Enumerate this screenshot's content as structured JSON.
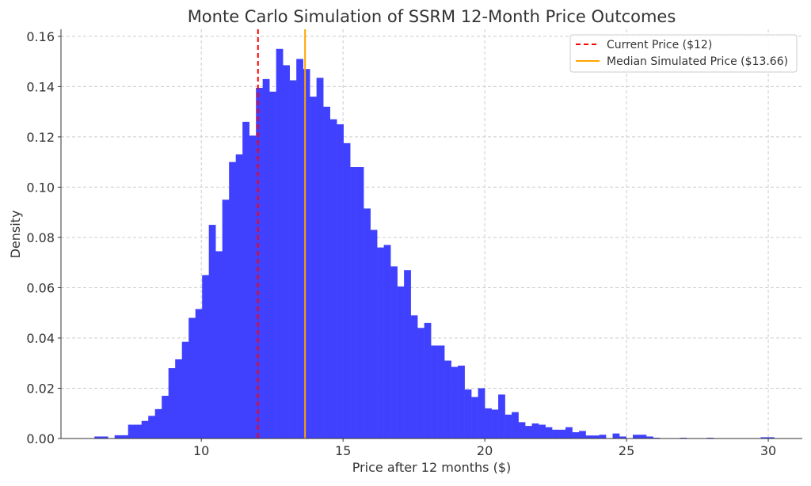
{
  "chart_data": {
    "type": "bar",
    "subtype": "histogram",
    "title": "Monte Carlo Simulation of SSRM 12-Month Price Outcomes",
    "xlabel": "Price after 12 months ($)",
    "ylabel": "Density",
    "xlim": [
      5.05,
      31.2
    ],
    "ylim": [
      0,
      0.1628
    ],
    "xticks": [
      10,
      15,
      20,
      25,
      30
    ],
    "xtick_labels": [
      "10",
      "15",
      "20",
      "25",
      "30"
    ],
    "yticks": [
      0,
      0.02,
      0.04,
      0.06,
      0.08,
      0.1,
      0.12,
      0.14,
      0.16
    ],
    "ytick_labels": [
      "0.00",
      "0.02",
      "0.04",
      "0.06",
      "0.08",
      "0.10",
      "0.12",
      "0.14",
      "0.16"
    ],
    "grid": true,
    "bar_color": "#4040ff",
    "bin_start": 6.23,
    "bin_width": 0.2374,
    "densities": [
      0.0008,
      0.0008,
      0,
      0.0013,
      0.0013,
      0.0055,
      0.0055,
      0.007,
      0.009,
      0.0117,
      0.017,
      0.028,
      0.0315,
      0.0385,
      0.048,
      0.0515,
      0.065,
      0.085,
      0.0745,
      0.095,
      0.11,
      0.113,
      0.126,
      0.1205,
      0.1395,
      0.143,
      0.138,
      0.155,
      0.1485,
      0.1425,
      0.151,
      0.147,
      0.136,
      0.1435,
      0.132,
      0.127,
      0.125,
      0.1175,
      0.108,
      0.108,
      0.0915,
      0.083,
      0.076,
      0.077,
      0.0685,
      0.0605,
      0.067,
      0.049,
      0.044,
      0.046,
      0.037,
      0.037,
      0.031,
      0.0285,
      0.029,
      0.0195,
      0.0165,
      0.02,
      0.012,
      0.0115,
      0.0175,
      0.0095,
      0.0105,
      0.0065,
      0.005,
      0.006,
      0.0055,
      0.0045,
      0.0035,
      0.0035,
      0.0045,
      0.0025,
      0.003,
      0.0012,
      0.0012,
      0.0015,
      0,
      0.002,
      0.0008,
      0,
      0.0015,
      0.0015,
      0.0008,
      0.0003,
      0,
      0,
      0,
      0.0003,
      0,
      0,
      0,
      0.0003,
      0,
      0,
      0,
      0,
      0,
      0,
      0,
      0.0005,
      0.0005
    ],
    "vlines": [
      {
        "label": "Current Price ($12)",
        "x": 12,
        "color": "#ff0000",
        "style": "dashed"
      },
      {
        "label": "Median Simulated Price ($13.66)",
        "x": 13.66,
        "color": "#ffa500",
        "style": "solid"
      }
    ],
    "legend_position": "top-right"
  }
}
